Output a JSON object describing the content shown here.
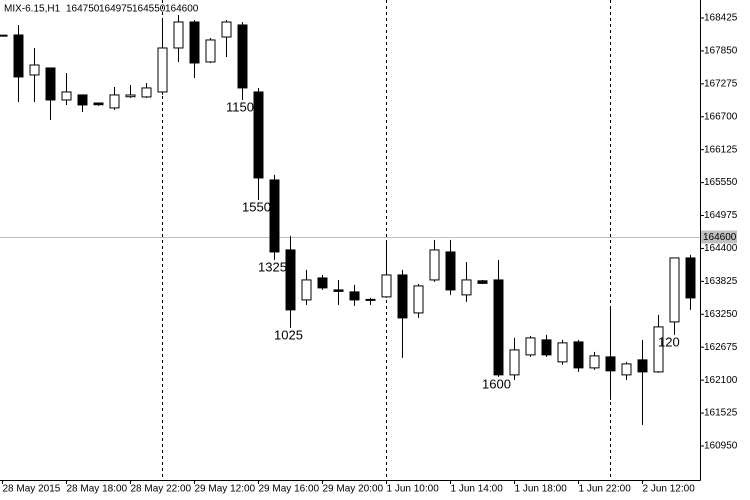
{
  "header": {
    "symbol": "MIX-6.15,H1",
    "open": 164750,
    "high": 164975,
    "low": 164550,
    "close": 164600
  },
  "chart_data": {
    "type": "candlestick",
    "x": [
      "28 May 2015",
      null,
      null,
      null,
      "28 May 18:00",
      null,
      null,
      null,
      "28 May 22:00",
      null,
      null,
      null,
      "29 May 12:00",
      null,
      null,
      null,
      "29 May 16:00",
      null,
      null,
      null,
      "29 May 20:00",
      null,
      null,
      null,
      "1 Jun 10:00",
      null,
      null,
      null,
      "1 Jun 14:00",
      null,
      null,
      null,
      "1 Jun 18:00",
      null,
      null,
      null,
      "1 Jun 22:00",
      null,
      null,
      null,
      "2 Jun 12:00",
      null,
      null,
      null
    ],
    "open": [
      168125,
      168128,
      167430,
      167552,
      166993,
      167081,
      166940,
      166854,
      167050,
      167046,
      167133,
      167901,
      168355,
      167657,
      168093,
      168303,
      167133,
      165596,
      164374,
      163501,
      163885,
      163676,
      163641,
      163510,
      163554,
      163937,
      163274,
      163850,
      164339,
      163589,
      163835,
      163850,
      162192,
      162541,
      162803,
      162419,
      162768,
      162314,
      162506,
      162192,
      162454,
      162244,
      163117,
      164234
    ],
    "high": [
      168125,
      168303,
      167901,
      167552,
      167465,
      167081,
      166940,
      167220,
      167255,
      167290,
      168390,
      168477,
      168390,
      168076,
      168390,
      168355,
      167203,
      165684,
      164619,
      164025,
      163937,
      163850,
      163763,
      163536,
      164514,
      164025,
      163781,
      164549,
      164549,
      164164,
      163850,
      164200,
      162838,
      162873,
      162890,
      162803,
      162803,
      162593,
      163362,
      162419,
      162803,
      163240,
      164234,
      164287
    ],
    "low": [
      168125,
      166958,
      166958,
      166644,
      166906,
      166784,
      166890,
      166819,
      167028,
      167028,
      167081,
      167657,
      167377,
      167639,
      167744,
      166993,
      165247,
      164200,
      163013,
      163414,
      163676,
      163414,
      163397,
      163414,
      163536,
      162489,
      163187,
      163816,
      163589,
      163467,
      163780,
      162157,
      162105,
      162506,
      162506,
      162367,
      162244,
      162279,
      161755,
      162105,
      161319,
      162227,
      162890,
      163327
    ],
    "close": [
      168125,
      167395,
      167604,
      166993,
      167133,
      166906,
      166910,
      167081,
      167080,
      167203,
      167901,
      168355,
      167639,
      168041,
      168355,
      167203,
      165631,
      164339,
      163327,
      163850,
      163711,
      163650,
      163501,
      163500,
      163937,
      163187,
      163746,
      164374,
      163676,
      163850,
      163790,
      162192,
      162628,
      162838,
      162541,
      162751,
      162314,
      162524,
      162262,
      162384,
      162244,
      163030,
      164234,
      163536
    ],
    "bull_color": "#ffffff",
    "bear_color": "#000000",
    "outline_color": "#000000",
    "ylim": [
      160356,
      168739
    ],
    "yticks": [
      168425,
      167850,
      167275,
      166700,
      166125,
      165550,
      164975,
      164400,
      163825,
      163250,
      162675,
      162100,
      161525,
      160950
    ],
    "price_line": 164600,
    "period_separators": [
      10,
      24,
      38
    ],
    "annotations": [
      {
        "text": "1150",
        "index": 15,
        "color": "#e0202a"
      },
      {
        "text": "1550",
        "index": 16,
        "color": "#e0202a"
      },
      {
        "text": "1325",
        "index": 17,
        "color": "#e0202a"
      },
      {
        "text": "1025",
        "index": 18,
        "color": "#e0202a"
      },
      {
        "text": "1600",
        "index": 31,
        "color": "#e0202a"
      },
      {
        "text": "120",
        "index": 42,
        "color": "#32cd32"
      }
    ]
  }
}
